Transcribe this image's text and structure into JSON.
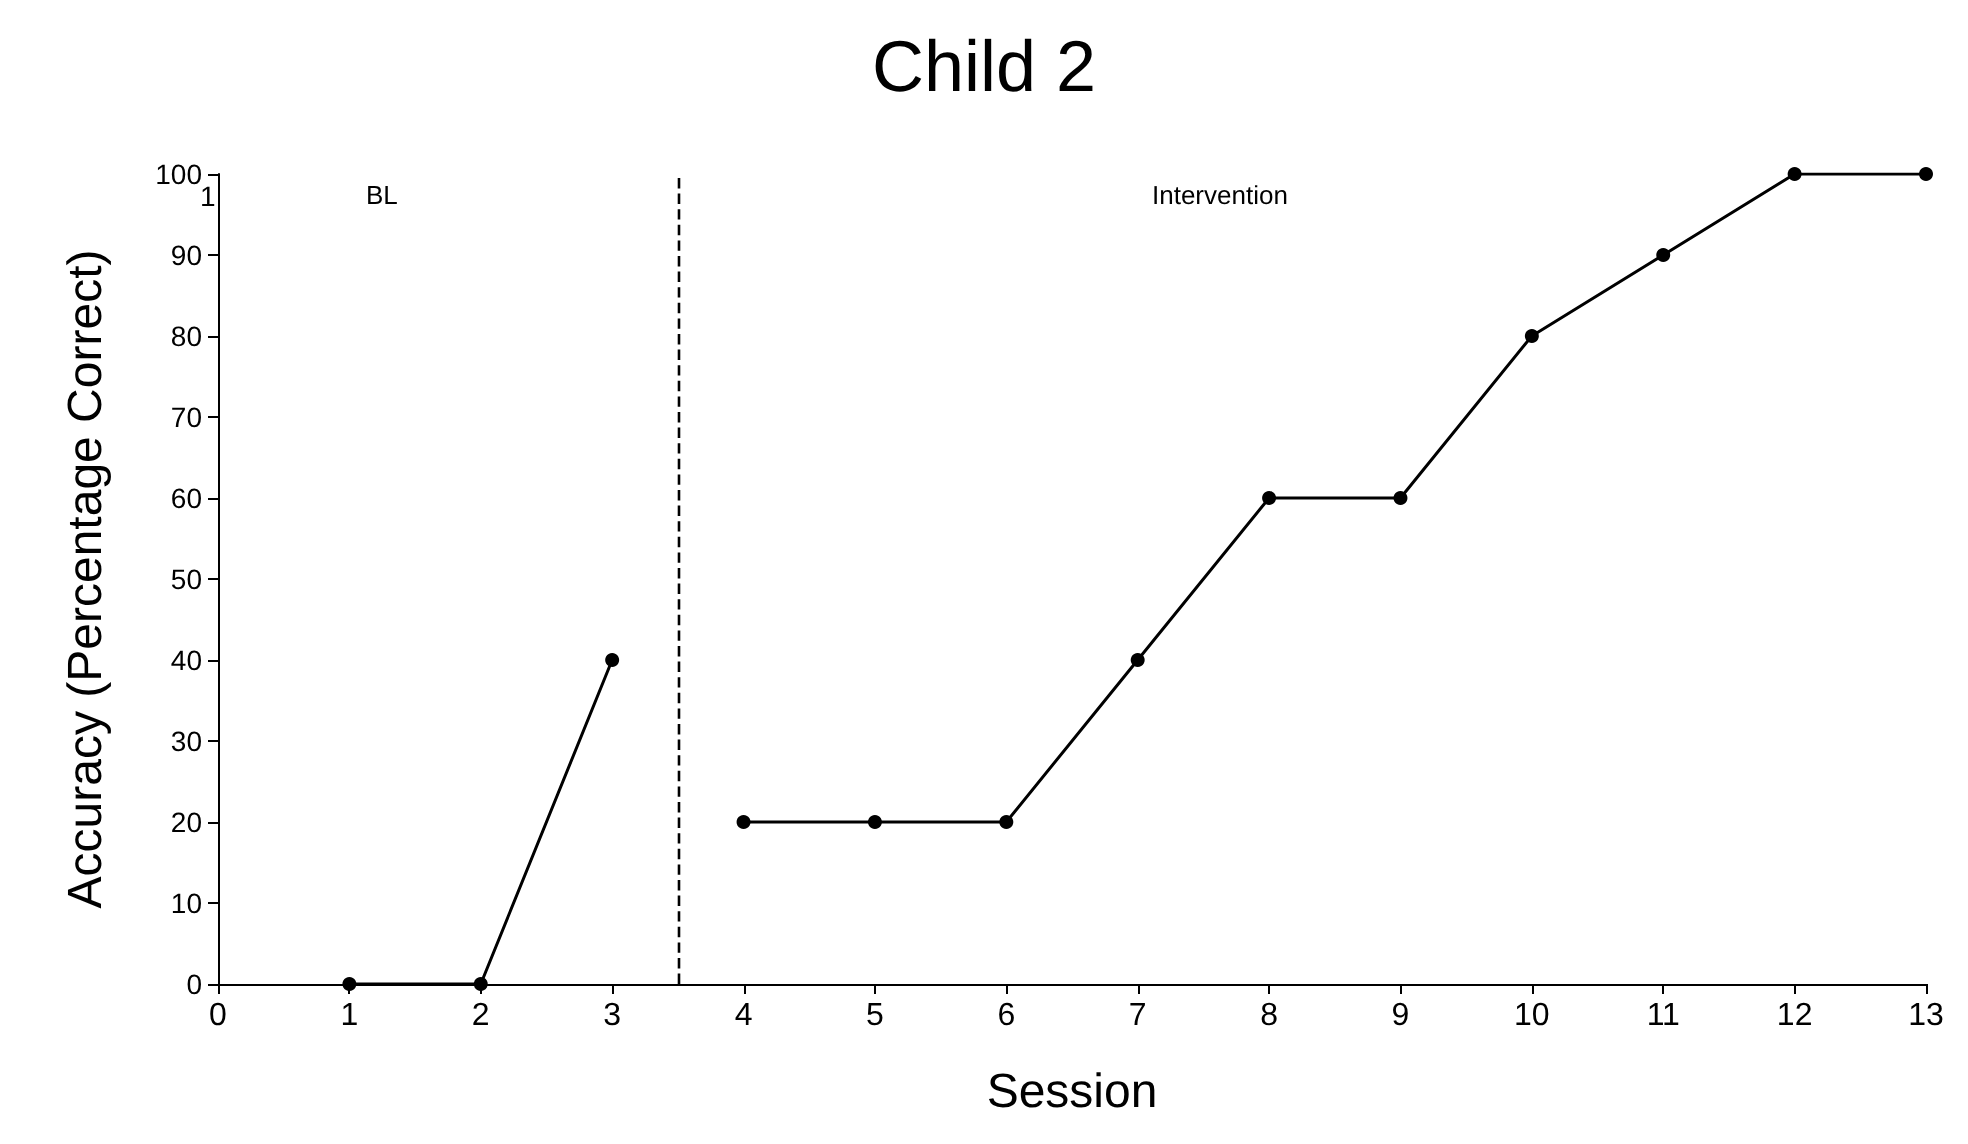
{
  "chart_data": {
    "type": "line",
    "title": "Child 2",
    "xlabel": "Session",
    "ylabel": "Accuracy (Percentage Correct)",
    "series": [
      {
        "color": "#000000",
        "x": [
          1,
          2,
          3
        ],
        "values": [
          0,
          0,
          40
        ]
      },
      {
        "color": "#000000",
        "x": [
          4,
          5,
          6,
          7,
          8,
          9,
          10,
          11,
          12,
          13
        ],
        "values": [
          20,
          20,
          20,
          40,
          60,
          60,
          80,
          90,
          100,
          100
        ]
      }
    ],
    "xlim": [
      0,
      13
    ],
    "xticks": [
      0,
      1,
      2,
      3,
      4,
      5,
      6,
      7,
      8,
      9,
      10,
      11,
      12,
      13
    ],
    "ylim": [
      0,
      100
    ],
    "yticks": [
      0,
      10,
      20,
      30,
      40,
      50,
      60,
      70,
      80,
      90,
      100
    ],
    "ref_lines": [
      {
        "axis": "x",
        "value": 3.5,
        "color": "#000000",
        "line_style": "dashed"
      }
    ],
    "annotations": [
      "1",
      "BL",
      "Intervention"
    ],
    "grid": false,
    "marker": "circle",
    "line_style": "solid"
  }
}
